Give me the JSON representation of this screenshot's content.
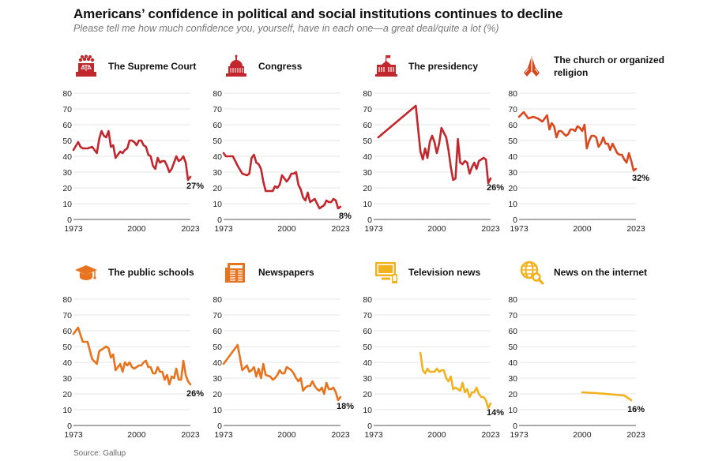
{
  "title": "Americans’ confidence in political and social institutions continues to decline",
  "subtitle": "Please tell me how much confidence you, yourself, have in each one—a great deal/quite a lot (%)",
  "source": "Source: Gallup",
  "chart_data": [
    {
      "type": "line",
      "title": "The Supreme Court",
      "icon": "supreme-court-icon",
      "color": "#c1272d",
      "xlim": [
        1973,
        2023
      ],
      "ylim": [
        0,
        80
      ],
      "xticks": [
        "1973",
        "2000",
        "2023"
      ],
      "yticks": [
        "0",
        "10",
        "20",
        "30",
        "40",
        "50",
        "60",
        "70",
        "80"
      ],
      "end_label": "27%",
      "x": [
        1973,
        1975,
        1976,
        1977,
        1979,
        1981,
        1983,
        1984,
        1985,
        1986,
        1987,
        1988,
        1989,
        1990,
        1991,
        1993,
        1994,
        1995,
        1996,
        1997,
        1998,
        1999,
        2000,
        2001,
        2002,
        2003,
        2004,
        2005,
        2006,
        2007,
        2008,
        2009,
        2010,
        2011,
        2012,
        2013,
        2014,
        2015,
        2016,
        2017,
        2018,
        2019,
        2020,
        2021,
        2022,
        2023
      ],
      "y": [
        44,
        49,
        46,
        45,
        45,
        46,
        42,
        51,
        56,
        53,
        52,
        56,
        46,
        47,
        39,
        43,
        42,
        44,
        45,
        50,
        50,
        49,
        47,
        50,
        50,
        47,
        46,
        41,
        40,
        34,
        32,
        39,
        36,
        37,
        37,
        34,
        30,
        32,
        36,
        40,
        37,
        38,
        40,
        36,
        25,
        27
      ]
    },
    {
      "type": "line",
      "title": "Congress",
      "icon": "congress-icon",
      "color": "#c1272d",
      "xlim": [
        1973,
        2023
      ],
      "ylim": [
        0,
        80
      ],
      "xticks": [
        "1973",
        "2000",
        "2023"
      ],
      "yticks": [
        "0",
        "10",
        "20",
        "30",
        "40",
        "50",
        "60",
        "70",
        "80"
      ],
      "end_label": "8%",
      "x": [
        1973,
        1974,
        1975,
        1977,
        1979,
        1981,
        1983,
        1984,
        1985,
        1986,
        1987,
        1988,
        1989,
        1990,
        1991,
        1993,
        1994,
        1995,
        1996,
        1997,
        1998,
        1999,
        2000,
        2001,
        2002,
        2003,
        2004,
        2005,
        2006,
        2007,
        2008,
        2009,
        2010,
        2011,
        2012,
        2013,
        2014,
        2015,
        2016,
        2017,
        2018,
        2019,
        2020,
        2021,
        2022,
        2023
      ],
      "y": [
        42,
        40,
        40,
        40,
        34,
        29,
        28,
        29,
        39,
        41,
        36,
        35,
        32,
        24,
        18,
        18,
        18,
        21,
        20,
        22,
        28,
        26,
        24,
        26,
        29,
        29,
        30,
        22,
        19,
        14,
        12,
        17,
        11,
        12,
        13,
        10,
        7,
        8,
        9,
        12,
        11,
        11,
        13,
        12,
        7,
        8
      ]
    },
    {
      "type": "line",
      "title": "The presidency",
      "icon": "white-house-icon",
      "color": "#c1272d",
      "xlim": [
        1973,
        2023
      ],
      "ylim": [
        0,
        80
      ],
      "xticks": [
        "1973",
        "2000",
        "2023"
      ],
      "yticks": [
        "0",
        "10",
        "20",
        "30",
        "40",
        "50",
        "60",
        "70",
        "80"
      ],
      "end_label": "26%",
      "x": [
        1975,
        1991,
        1993,
        1994,
        1995,
        1996,
        1997,
        1998,
        1999,
        2000,
        2001,
        2002,
        2003,
        2004,
        2005,
        2006,
        2007,
        2008,
        2009,
        2010,
        2011,
        2012,
        2013,
        2014,
        2015,
        2016,
        2017,
        2018,
        2019,
        2020,
        2021,
        2022,
        2023
      ],
      "y": [
        52,
        72,
        43,
        38,
        45,
        39,
        49,
        53,
        49,
        42,
        48,
        58,
        55,
        52,
        44,
        33,
        25,
        26,
        51,
        36,
        35,
        37,
        36,
        29,
        33,
        36,
        32,
        37,
        38,
        39,
        38,
        23,
        26
      ]
    },
    {
      "type": "line",
      "title": "The church or organized religion",
      "icon": "praying-hands-icon",
      "color": "#d9481e",
      "xlim": [
        1973,
        2023
      ],
      "ylim": [
        0,
        80
      ],
      "xticks": [
        "1973",
        "2000",
        "2023"
      ],
      "yticks": [
        "0",
        "10",
        "20",
        "30",
        "40",
        "50",
        "60",
        "70",
        "80"
      ],
      "end_label": "32%",
      "x": [
        1973,
        1975,
        1977,
        1979,
        1981,
        1983,
        1984,
        1985,
        1986,
        1987,
        1988,
        1989,
        1990,
        1991,
        1993,
        1994,
        1995,
        1996,
        1997,
        1998,
        1999,
        2000,
        2001,
        2002,
        2003,
        2004,
        2005,
        2006,
        2007,
        2008,
        2009,
        2010,
        2011,
        2012,
        2013,
        2014,
        2015,
        2016,
        2017,
        2018,
        2019,
        2020,
        2021,
        2022,
        2023
      ],
      "y": [
        65,
        68,
        64,
        65,
        64,
        62,
        64,
        66,
        57,
        61,
        59,
        52,
        56,
        56,
        53,
        54,
        57,
        57,
        56,
        59,
        58,
        56,
        60,
        45,
        50,
        53,
        53,
        52,
        46,
        48,
        52,
        48,
        48,
        44,
        48,
        45,
        42,
        41,
        41,
        38,
        36,
        42,
        37,
        31,
        32
      ]
    },
    {
      "type": "line",
      "title": "The public schools",
      "icon": "graduation-cap-icon",
      "color": "#e8731e",
      "xlim": [
        1973,
        2023
      ],
      "ylim": [
        0,
        80
      ],
      "xticks": [
        "1973",
        "2000",
        "2023"
      ],
      "yticks": [
        "0",
        "10",
        "20",
        "30",
        "40",
        "50",
        "60",
        "70",
        "80"
      ],
      "end_label": "26%",
      "x": [
        1973,
        1975,
        1977,
        1979,
        1981,
        1983,
        1984,
        1985,
        1986,
        1987,
        1988,
        1989,
        1990,
        1991,
        1993,
        1994,
        1995,
        1996,
        1997,
        1998,
        1999,
        2000,
        2001,
        2002,
        2003,
        2004,
        2005,
        2006,
        2007,
        2008,
        2009,
        2010,
        2011,
        2012,
        2013,
        2014,
        2015,
        2016,
        2017,
        2018,
        2019,
        2020,
        2021,
        2022,
        2023
      ],
      "y": [
        58,
        62,
        53,
        53,
        42,
        39,
        47,
        48,
        49,
        50,
        49,
        43,
        45,
        35,
        39,
        34,
        40,
        38,
        40,
        37,
        36,
        37,
        38,
        38,
        40,
        41,
        37,
        37,
        33,
        33,
        37,
        34,
        34,
        29,
        32,
        26,
        31,
        30,
        36,
        29,
        29,
        41,
        32,
        28,
        26
      ]
    },
    {
      "type": "line",
      "title": "Newspapers",
      "icon": "newspaper-icon",
      "color": "#e8731e",
      "xlim": [
        1973,
        2023
      ],
      "ylim": [
        0,
        80
      ],
      "xticks": [
        "1973",
        "2000",
        "2023"
      ],
      "yticks": [
        "0",
        "10",
        "20",
        "30",
        "40",
        "50",
        "60",
        "70",
        "80"
      ],
      "end_label": "18%",
      "x": [
        1973,
        1979,
        1981,
        1983,
        1984,
        1985,
        1986,
        1987,
        1988,
        1989,
        1990,
        1991,
        1993,
        1994,
        1995,
        1996,
        1997,
        1998,
        1999,
        2000,
        2001,
        2002,
        2003,
        2004,
        2005,
        2006,
        2007,
        2008,
        2009,
        2010,
        2011,
        2012,
        2013,
        2014,
        2015,
        2016,
        2017,
        2018,
        2019,
        2020,
        2021,
        2022,
        2023
      ],
      "y": [
        39,
        51,
        35,
        38,
        34,
        35,
        37,
        31,
        36,
        30,
        39,
        32,
        31,
        29,
        30,
        32,
        35,
        33,
        33,
        37,
        36,
        35,
        33,
        30,
        28,
        30,
        22,
        24,
        25,
        25,
        28,
        25,
        23,
        22,
        24,
        20,
        27,
        23,
        23,
        24,
        21,
        16,
        18
      ]
    },
    {
      "type": "line",
      "title": "Television news",
      "icon": "television-icon",
      "color": "#f2b21d",
      "xlim": [
        1973,
        2023
      ],
      "ylim": [
        0,
        80
      ],
      "xticks": [
        "1973",
        "2000",
        "2023"
      ],
      "yticks": [
        "0",
        "10",
        "20",
        "30",
        "40",
        "50",
        "60",
        "70",
        "80"
      ],
      "end_label": "14%",
      "x": [
        1993,
        1994,
        1995,
        1996,
        1997,
        1998,
        1999,
        2000,
        2001,
        2002,
        2003,
        2004,
        2005,
        2006,
        2007,
        2008,
        2009,
        2010,
        2011,
        2012,
        2013,
        2014,
        2015,
        2016,
        2017,
        2018,
        2019,
        2020,
        2021,
        2022,
        2023
      ],
      "y": [
        46,
        35,
        33,
        36,
        34,
        34,
        34,
        36,
        34,
        35,
        35,
        30,
        28,
        31,
        23,
        24,
        23,
        22,
        27,
        21,
        23,
        18,
        21,
        21,
        24,
        20,
        18,
        18,
        16,
        11,
        14
      ]
    },
    {
      "type": "line",
      "title": "News on the internet",
      "icon": "globe-search-icon",
      "color": "#f2b21d",
      "xlim": [
        1973,
        2023
      ],
      "ylim": [
        0,
        80
      ],
      "xticks": [
        "1973",
        "2000",
        "2023"
      ],
      "yticks": [
        "0",
        "10",
        "20",
        "30",
        "40",
        "50",
        "60",
        "70",
        "80"
      ],
      "end_label": "16%",
      "x": [
        2000,
        2006,
        2014,
        2018,
        2021
      ],
      "y": [
        21,
        20.5,
        19.5,
        19,
        16
      ]
    }
  ]
}
